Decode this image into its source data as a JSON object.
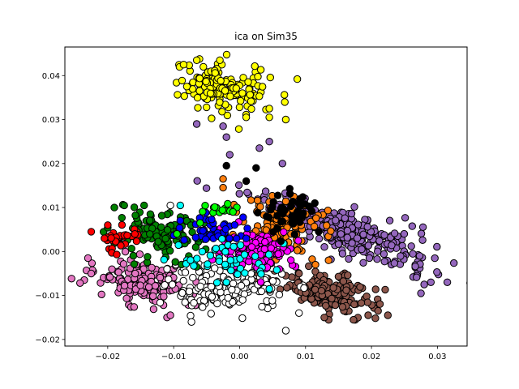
{
  "chart_data": {
    "type": "scatter",
    "title": "ica on Sim35",
    "xlabel": "",
    "ylabel": "",
    "xlim": [
      -0.0265,
      0.0345
    ],
    "ylim": [
      -0.0215,
      0.0465
    ],
    "xticks": [
      -0.02,
      -0.01,
      0.0,
      0.01,
      0.02,
      0.03
    ],
    "xtick_labels": [
      "−0.02",
      "−0.01",
      "0.00",
      "0.01",
      "0.02",
      "0.03"
    ],
    "yticks": [
      -0.02,
      -0.01,
      0.0,
      0.01,
      0.02,
      0.03,
      0.04
    ],
    "ytick_labels": [
      "−0.02",
      "−0.01",
      "0.00",
      "0.01",
      "0.02",
      "0.03",
      "0.04"
    ],
    "grid": false,
    "marker_edge_color": "#000000",
    "series": [
      {
        "color": "#ffff00",
        "cluster": {
          "cx": -0.0025,
          "cy": 0.037,
          "sx": 0.004,
          "sy": 0.0025,
          "rot": -0.35,
          "n": 150
        },
        "points": [
          [
            -0.0085,
            0.0425
          ],
          [
            -0.0065,
            0.0435
          ],
          [
            -0.003,
            0.0435
          ],
          [
            -0.008,
            0.0375
          ],
          [
            0.0045,
            0.0325
          ],
          [
            0.007,
            0.03
          ],
          [
            0.0045,
            0.0305
          ],
          [
            0.001,
            0.0305
          ],
          [
            -0.0055,
            0.042
          ]
        ]
      },
      {
        "color": "#9467bd",
        "cluster": {
          "cx": 0.016,
          "cy": 0.0045,
          "sx": 0.0075,
          "sy": 0.002,
          "rot": -0.55,
          "n": 300
        },
        "points": [
          [
            -0.0065,
            0.029
          ],
          [
            -0.0025,
            0.0285
          ],
          [
            -0.002,
            0.026
          ],
          [
            -0.0015,
            0.022
          ],
          [
            0.003,
            0.0235
          ],
          [
            0.0045,
            0.025
          ],
          [
            0.0065,
            0.02
          ],
          [
            0.029,
            -0.007
          ],
          [
            0.0315,
            -0.007
          ],
          [
            0.028,
            -0.0075
          ],
          [
            0.0275,
            -0.0095
          ]
        ]
      },
      {
        "color": "#8c564b",
        "cluster": {
          "cx": 0.0135,
          "cy": -0.0095,
          "sx": 0.0038,
          "sy": 0.002,
          "rot": -0.45,
          "n": 180
        },
        "points": [
          [
            0.021,
            -0.0135
          ],
          [
            0.0195,
            -0.0145
          ],
          [
            0.009,
            -0.005
          ]
        ]
      },
      {
        "color": "#e377c2",
        "cluster": {
          "cx": -0.015,
          "cy": -0.007,
          "sx": 0.0035,
          "sy": 0.0022,
          "rot": -0.3,
          "n": 170
        },
        "points": [
          [
            -0.023,
            -0.0015
          ],
          [
            -0.0225,
            -0.005
          ],
          [
            -0.011,
            -0.015
          ],
          [
            -0.0105,
            -0.0145
          ]
        ]
      },
      {
        "color": "#ffffff",
        "cluster": {
          "cx": -0.002,
          "cy": -0.0085,
          "sx": 0.0045,
          "sy": 0.0025,
          "rot": 0.0,
          "n": 170
        },
        "points": [
          [
            -0.0105,
            0.0105
          ],
          [
            0.007,
            -0.018
          ],
          [
            0.009,
            -0.014
          ],
          [
            -0.011,
            -0.004
          ]
        ]
      },
      {
        "color": "#008000",
        "cluster": {
          "cx": -0.0125,
          "cy": 0.0035,
          "sx": 0.0035,
          "sy": 0.0025,
          "rot": 0.0,
          "n": 110
        },
        "points": [
          [
            -0.019,
            0.01
          ],
          [
            -0.0175,
            0.0105
          ],
          [
            -0.0065,
            -0.0035
          ]
        ]
      },
      {
        "color": "#ff0000",
        "cluster": {
          "cx": -0.018,
          "cy": 0.0025,
          "sx": 0.0015,
          "sy": 0.0017,
          "rot": 0.0,
          "n": 30
        },
        "points": [
          [
            -0.0225,
            0.0045
          ],
          [
            -0.02,
            0.006
          ],
          [
            -0.0205,
            0.003
          ]
        ]
      },
      {
        "color": "#ff7f0e",
        "cluster": {
          "cx": 0.0065,
          "cy": 0.006,
          "sx": 0.0035,
          "sy": 0.003,
          "rot": -0.3,
          "n": 110
        },
        "points": [
          [
            -0.0025,
            0.0165
          ],
          [
            -0.0025,
            0.0145
          ],
          [
            0.0115,
            -0.003
          ],
          [
            0.0135,
            -0.002
          ]
        ]
      },
      {
        "color": "#ff00ff",
        "cluster": {
          "cx": 0.003,
          "cy": 0.0005,
          "sx": 0.0028,
          "sy": 0.0022,
          "rot": 0.0,
          "n": 110
        },
        "points": [
          [
            -0.0005,
            -0.005
          ],
          [
            0.006,
            -0.004
          ]
        ]
      },
      {
        "color": "#0000ff",
        "cluster": {
          "cx": -0.0035,
          "cy": 0.005,
          "sx": 0.003,
          "sy": 0.0016,
          "rot": 0.0,
          "n": 45
        },
        "points": [
          [
            -0.009,
            0.007
          ],
          [
            0.001,
            0.003
          ]
        ]
      },
      {
        "color": "#00ffff",
        "cluster": {
          "cx": -0.002,
          "cy": -0.002,
          "sx": 0.0035,
          "sy": 0.0022,
          "rot": 0.0,
          "n": 45
        },
        "points": [
          [
            -0.009,
            0.0105
          ],
          [
            -0.002,
            -0.007
          ],
          [
            0.0045,
            -0.0085
          ]
        ]
      },
      {
        "color": "#00ff00",
        "cluster": {
          "cx": -0.003,
          "cy": 0.0095,
          "sx": 0.0017,
          "sy": 0.001,
          "rot": 0.0,
          "n": 14
        },
        "points": [
          [
            -0.006,
            0.0065
          ],
          [
            -0.001,
            0.009
          ],
          [
            -0.0095,
            0.004
          ]
        ]
      },
      {
        "color": "#000000",
        "cluster": {
          "cx": 0.008,
          "cy": 0.0085,
          "sx": 0.0022,
          "sy": 0.0022,
          "rot": 0.0,
          "n": 45
        },
        "points": [
          [
            -0.002,
            0.0195
          ],
          [
            0.0025,
            0.019
          ],
          [
            0.001,
            0.016
          ],
          [
            0.012,
            0.0045
          ]
        ]
      }
    ]
  }
}
